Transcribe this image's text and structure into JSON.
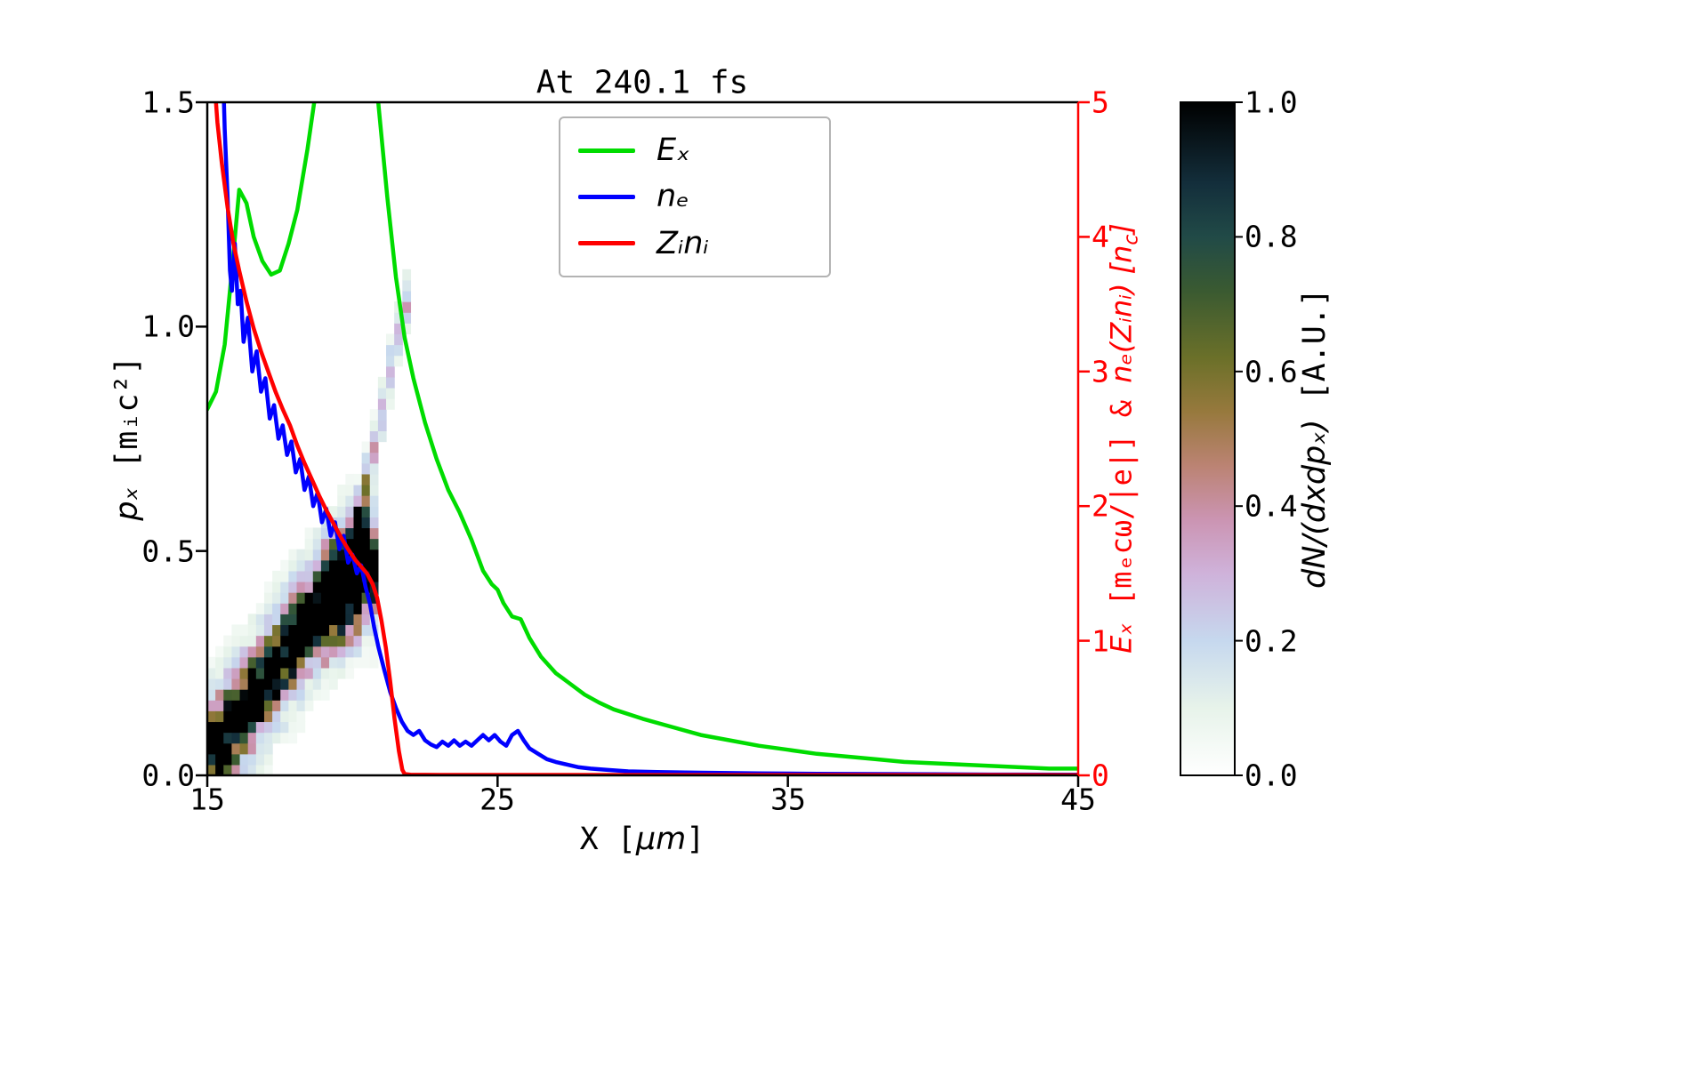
{
  "chart_data": {
    "type": [
      "heatmap",
      "line"
    ],
    "title": "At 240.1 fs",
    "time_fs": 240.1,
    "x_axis": {
      "label": "X [μm]",
      "range": [
        15,
        45
      ],
      "ticks": [
        15,
        25,
        35,
        45
      ],
      "tick_labels": [
        "15",
        "25",
        "35",
        "45"
      ]
    },
    "y_axis_left": {
      "label": "pₓ [mᵢc²]",
      "range": [
        0,
        1.5
      ],
      "ticks": [
        0.0,
        0.5,
        1.0,
        1.5
      ],
      "tick_labels": [
        "0.0",
        "0.5",
        "1.0",
        "1.5"
      ]
    },
    "y_axis_right": {
      "label": "Eₓ [mₑcω/|e|] & nₑ(Zᵢnᵢ) [n_c]",
      "range": [
        0,
        5
      ],
      "ticks": [
        0,
        1,
        2,
        3,
        4,
        5
      ],
      "tick_labels": [
        "0",
        "1",
        "2",
        "3",
        "4",
        "5"
      ],
      "color": "#ff0000"
    },
    "colorbar": {
      "label": "dN/(dxdpₓ) [A.U.]",
      "range": [
        0,
        1
      ],
      "ticks": [
        0.0,
        0.2,
        0.4,
        0.6,
        0.8,
        1.0
      ],
      "tick_labels": [
        "0.0",
        "0.2",
        "0.4",
        "0.6",
        "0.8",
        "1.0"
      ],
      "colormap_stops": [
        [
          0.0,
          "#ffffff"
        ],
        [
          0.1,
          "#e7f3ea"
        ],
        [
          0.2,
          "#c6d8ee"
        ],
        [
          0.3,
          "#cfb2da"
        ],
        [
          0.38,
          "#cb94b2"
        ],
        [
          0.46,
          "#bb8373"
        ],
        [
          0.54,
          "#97793d"
        ],
        [
          0.62,
          "#6b7029"
        ],
        [
          0.72,
          "#3a5a31"
        ],
        [
          0.8,
          "#214a47"
        ],
        [
          0.88,
          "#132e3b"
        ],
        [
          1.0,
          "#000000"
        ]
      ]
    },
    "legend": {
      "position": "upper-center-left",
      "entries": [
        "Eₓ",
        "nₑ",
        "Zᵢnᵢ"
      ]
    },
    "series": [
      {
        "name": "Ex",
        "legend": "Eₓ",
        "color": "#00dc00",
        "axis": "right",
        "points": [
          [
            15,
            2.72
          ],
          [
            15.3,
            2.85
          ],
          [
            15.6,
            3.2
          ],
          [
            15.85,
            3.75
          ],
          [
            16.1,
            4.35
          ],
          [
            16.35,
            4.25
          ],
          [
            16.6,
            4.0
          ],
          [
            16.9,
            3.82
          ],
          [
            17.2,
            3.72
          ],
          [
            17.5,
            3.75
          ],
          [
            17.8,
            3.95
          ],
          [
            18.1,
            4.2
          ],
          [
            18.45,
            4.65
          ],
          [
            18.75,
            5.1
          ],
          [
            19.0,
            5.6
          ],
          [
            19.5,
            6.3
          ],
          [
            20.0,
            6.4
          ],
          [
            20.5,
            5.9
          ],
          [
            20.8,
            5.2
          ],
          [
            21.0,
            4.75
          ],
          [
            21.2,
            4.3
          ],
          [
            21.5,
            3.7
          ],
          [
            21.8,
            3.25
          ],
          [
            22.1,
            2.95
          ],
          [
            22.5,
            2.62
          ],
          [
            22.9,
            2.35
          ],
          [
            23.3,
            2.12
          ],
          [
            23.7,
            1.95
          ],
          [
            24.1,
            1.75
          ],
          [
            24.5,
            1.52
          ],
          [
            24.8,
            1.42
          ],
          [
            25.0,
            1.38
          ],
          [
            25.2,
            1.28
          ],
          [
            25.5,
            1.18
          ],
          [
            25.8,
            1.16
          ],
          [
            26.1,
            1.02
          ],
          [
            26.5,
            0.88
          ],
          [
            27,
            0.76
          ],
          [
            27.5,
            0.68
          ],
          [
            28,
            0.6
          ],
          [
            28.5,
            0.54
          ],
          [
            29,
            0.49
          ],
          [
            30,
            0.42
          ],
          [
            31,
            0.36
          ],
          [
            32,
            0.3
          ],
          [
            33,
            0.26
          ],
          [
            34,
            0.22
          ],
          [
            35,
            0.19
          ],
          [
            36,
            0.16
          ],
          [
            37,
            0.14
          ],
          [
            38,
            0.12
          ],
          [
            39,
            0.1
          ],
          [
            40,
            0.09
          ],
          [
            41,
            0.08
          ],
          [
            42,
            0.07
          ],
          [
            43,
            0.06
          ],
          [
            44,
            0.05
          ],
          [
            45,
            0.05
          ]
        ]
      },
      {
        "name": "ne",
        "legend": "nₑ",
        "color": "#0000ff",
        "axis": "right",
        "points": [
          [
            15.52,
            5.4
          ],
          [
            15.6,
            4.8
          ],
          [
            15.7,
            4.3
          ],
          [
            15.78,
            3.75
          ],
          [
            15.85,
            3.6
          ],
          [
            15.95,
            3.95
          ],
          [
            16.05,
            3.5
          ],
          [
            16.15,
            3.6
          ],
          [
            16.25,
            3.22
          ],
          [
            16.4,
            3.4
          ],
          [
            16.55,
            3.0
          ],
          [
            16.7,
            3.15
          ],
          [
            16.85,
            2.85
          ],
          [
            17.0,
            2.95
          ],
          [
            17.15,
            2.65
          ],
          [
            17.3,
            2.75
          ],
          [
            17.45,
            2.5
          ],
          [
            17.6,
            2.6
          ],
          [
            17.75,
            2.38
          ],
          [
            17.9,
            2.48
          ],
          [
            18.05,
            2.25
          ],
          [
            18.2,
            2.35
          ],
          [
            18.35,
            2.12
          ],
          [
            18.5,
            2.22
          ],
          [
            18.65,
            2.0
          ],
          [
            18.8,
            2.1
          ],
          [
            18.95,
            1.88
          ],
          [
            19.1,
            1.98
          ],
          [
            19.25,
            1.78
          ],
          [
            19.4,
            1.88
          ],
          [
            19.55,
            1.68
          ],
          [
            19.7,
            1.78
          ],
          [
            19.85,
            1.58
          ],
          [
            20.0,
            1.64
          ],
          [
            20.15,
            1.5
          ],
          [
            20.3,
            1.56
          ],
          [
            20.45,
            1.4
          ],
          [
            20.6,
            1.28
          ],
          [
            20.75,
            1.1
          ],
          [
            20.9,
            0.95
          ],
          [
            21.1,
            0.78
          ],
          [
            21.3,
            0.62
          ],
          [
            21.5,
            0.5
          ],
          [
            21.7,
            0.4
          ],
          [
            21.9,
            0.33
          ],
          [
            22.1,
            0.3
          ],
          [
            22.3,
            0.33
          ],
          [
            22.5,
            0.26
          ],
          [
            22.7,
            0.23
          ],
          [
            22.9,
            0.21
          ],
          [
            23.1,
            0.25
          ],
          [
            23.3,
            0.22
          ],
          [
            23.5,
            0.26
          ],
          [
            23.7,
            0.22
          ],
          [
            23.9,
            0.25
          ],
          [
            24.1,
            0.22
          ],
          [
            24.3,
            0.26
          ],
          [
            24.5,
            0.3
          ],
          [
            24.7,
            0.26
          ],
          [
            24.9,
            0.3
          ],
          [
            25.1,
            0.25
          ],
          [
            25.3,
            0.22
          ],
          [
            25.5,
            0.3
          ],
          [
            25.7,
            0.33
          ],
          [
            25.9,
            0.26
          ],
          [
            26.1,
            0.2
          ],
          [
            26.4,
            0.16
          ],
          [
            26.7,
            0.12
          ],
          [
            27.0,
            0.1
          ],
          [
            27.4,
            0.08
          ],
          [
            27.8,
            0.06
          ],
          [
            28.2,
            0.05
          ],
          [
            28.8,
            0.04
          ],
          [
            29.5,
            0.03
          ],
          [
            30.5,
            0.025
          ],
          [
            32,
            0.02
          ],
          [
            34,
            0.015
          ],
          [
            36,
            0.012
          ],
          [
            38,
            0.01
          ],
          [
            40,
            0.008
          ],
          [
            42,
            0.006
          ],
          [
            45,
            0.005
          ]
        ]
      },
      {
        "name": "Zini",
        "legend": "Zᵢnᵢ",
        "color": "#ff0000",
        "axis": "right",
        "points": [
          [
            15.2,
            5.3
          ],
          [
            15.35,
            4.85
          ],
          [
            15.5,
            4.55
          ],
          [
            15.7,
            4.22
          ],
          [
            15.9,
            3.95
          ],
          [
            16.1,
            3.75
          ],
          [
            16.35,
            3.52
          ],
          [
            16.6,
            3.32
          ],
          [
            16.85,
            3.15
          ],
          [
            17.1,
            3.0
          ],
          [
            17.35,
            2.85
          ],
          [
            17.6,
            2.72
          ],
          [
            17.85,
            2.6
          ],
          [
            18.1,
            2.45
          ],
          [
            18.35,
            2.32
          ],
          [
            18.6,
            2.2
          ],
          [
            18.85,
            2.08
          ],
          [
            19.1,
            1.97
          ],
          [
            19.35,
            1.87
          ],
          [
            19.6,
            1.77
          ],
          [
            19.85,
            1.68
          ],
          [
            20.1,
            1.6
          ],
          [
            20.3,
            1.55
          ],
          [
            20.5,
            1.5
          ],
          [
            20.7,
            1.42
          ],
          [
            20.85,
            1.32
          ],
          [
            21.0,
            1.15
          ],
          [
            21.15,
            0.95
          ],
          [
            21.3,
            0.7
          ],
          [
            21.45,
            0.42
          ],
          [
            21.6,
            0.18
          ],
          [
            21.72,
            0.04
          ],
          [
            21.8,
            0.01
          ],
          [
            22.0,
            0.005
          ],
          [
            23,
            0.003
          ],
          [
            45,
            0.002
          ]
        ]
      }
    ],
    "heatmap": {
      "quantity": "dN/(dxdpₓ)",
      "x_range": [
        15,
        22.6
      ],
      "p_range": [
        0,
        1.12
      ],
      "cell_x": 0.28,
      "cell_p": 0.024,
      "noise_seed": 7,
      "bands": [
        {
          "name": "core",
          "amp": 1.15,
          "sigma": 0.045,
          "points": [
            [
              15,
              0.05
            ],
            [
              15.5,
              0.08
            ],
            [
              16,
              0.12
            ],
            [
              16.5,
              0.165
            ],
            [
              17,
              0.21
            ],
            [
              17.5,
              0.255
            ],
            [
              18,
              0.3
            ],
            [
              18.5,
              0.345
            ],
            [
              19,
              0.385
            ],
            [
              19.5,
              0.42
            ],
            [
              20,
              0.445
            ],
            [
              20.6,
              0.465
            ]
          ]
        },
        {
          "name": "halo",
          "amp": 0.4,
          "sigma": 0.1,
          "points": [
            [
              15,
              0.05
            ],
            [
              15.5,
              0.08
            ],
            [
              16,
              0.12
            ],
            [
              16.5,
              0.165
            ],
            [
              17,
              0.21
            ],
            [
              17.5,
              0.255
            ],
            [
              18,
              0.3
            ],
            [
              18.5,
              0.345
            ],
            [
              19,
              0.385
            ],
            [
              19.5,
              0.42
            ],
            [
              20,
              0.445
            ],
            [
              20.6,
              0.465
            ]
          ]
        },
        {
          "name": "blob",
          "amp": 0.9,
          "sigma": 0.07,
          "points": [
            [
              19.0,
              0.38
            ],
            [
              19.7,
              0.42
            ],
            [
              20.3,
              0.46
            ]
          ]
        },
        {
          "name": "streak-base",
          "amp": 0.5,
          "sigma": 0.05,
          "points": [
            [
              20.1,
              0.5
            ],
            [
              20.5,
              0.58
            ]
          ]
        },
        {
          "name": "streak",
          "amp": 0.3,
          "sigma": 0.04,
          "points": [
            [
              19.9,
              0.5
            ],
            [
              20.3,
              0.6
            ],
            [
              20.7,
              0.72
            ],
            [
              21.0,
              0.8
            ],
            [
              21.3,
              0.9
            ],
            [
              21.6,
              1.0
            ],
            [
              21.8,
              1.06
            ]
          ]
        }
      ]
    }
  },
  "label_parts": {
    "y_left_math": "pₓ",
    "y_left_unit": " [mᵢc²]",
    "x_pre": "X [",
    "x_math": "μm",
    "x_post": "]",
    "y_right_p1": "Eₓ",
    "y_right_p2": " [mₑcω/|e|] & ",
    "y_right_p3": "nₑ(Zᵢnᵢ)",
    "y_right_p4": " [n",
    "y_right_sub": "c",
    "y_right_p5": "]",
    "cbar_math": "dN/(dxdpₓ)",
    "cbar_unit": " [A.U.]"
  }
}
